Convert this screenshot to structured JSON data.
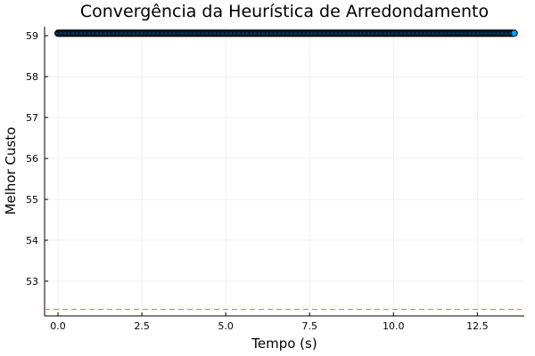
{
  "chart_data": {
    "type": "scatter",
    "title": "Convergência da Heurística de Arredondamento",
    "xlabel": "Tempo (s)",
    "ylabel": "Melhor Custo",
    "xlim": [
      -0.4,
      13.9
    ],
    "ylim": [
      52.15,
      59.22
    ],
    "xticks": [
      0.0,
      2.5,
      5.0,
      7.5,
      10.0,
      12.5
    ],
    "xtick_labels": [
      "0.0",
      "2.5",
      "5.0",
      "7.5",
      "10.0",
      "12.5"
    ],
    "yticks": [
      53,
      54,
      55,
      56,
      57,
      58,
      59
    ],
    "ytick_labels": [
      "53",
      "54",
      "55",
      "56",
      "57",
      "58",
      "59"
    ],
    "grid": true,
    "legend": "none",
    "series": [
      {
        "kind": "scatter",
        "color": "#009AFA",
        "x_start": 0.0,
        "x_end": 13.6,
        "point_count": 400,
        "y": 59.06
      },
      {
        "kind": "reference-line",
        "style": "dashed",
        "color": "#E26F46",
        "y": 52.31
      }
    ]
  }
}
